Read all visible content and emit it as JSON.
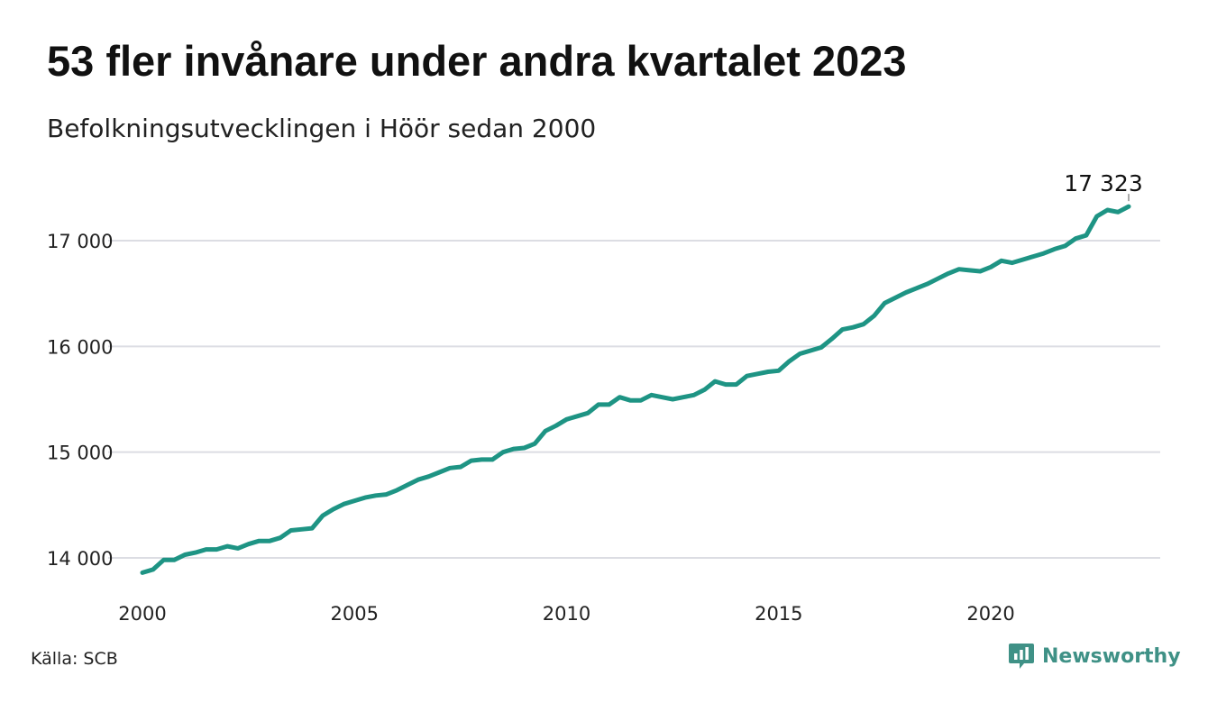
{
  "title": "53 fler invånare under andra kvartalet 2023",
  "subtitle": "Befolkningsutvecklingen i Höör sedan 2000",
  "source": "Källa: SCB",
  "brand": {
    "name": "Newsworthy",
    "icon": "bar-chart-speech-bubble-icon",
    "color": "#3f9186"
  },
  "colors": {
    "line": "#1e9484",
    "grid": "#dcdde3",
    "text": "#111111"
  },
  "chart_data": {
    "type": "line",
    "title": "53 fler invånare under andra kvartalet 2023",
    "subtitle": "Befolkningsutvecklingen i Höör sedan 2000",
    "xlabel": "",
    "ylabel": "",
    "xlim": [
      2000.0,
      2023.25
    ],
    "ylim": [
      13850,
      17420
    ],
    "y_ticks": [
      14000,
      15000,
      16000,
      17000
    ],
    "y_tick_labels": [
      "14 000",
      "15 000",
      "16 000",
      "17 000"
    ],
    "x_ticks": [
      2000,
      2005,
      2010,
      2015,
      2020
    ],
    "x_tick_labels": [
      "2000",
      "2005",
      "2010",
      "2015",
      "2020"
    ],
    "grid": "horizontal",
    "series": [
      {
        "values_note": "quarterly population, first point Q1 2000",
        "x_start": 2000.0,
        "x_step": 0.25,
        "values": [
          13860,
          13890,
          13980,
          13980,
          14030,
          14050,
          14080,
          14080,
          14110,
          14090,
          14130,
          14160,
          14160,
          14190,
          14260,
          14270,
          14280,
          14400,
          14460,
          14510,
          14540,
          14570,
          14590,
          14600,
          14640,
          14690,
          14740,
          14770,
          14810,
          14850,
          14860,
          14920,
          14930,
          14930,
          15000,
          15030,
          15040,
          15080,
          15200,
          15250,
          15310,
          15340,
          15370,
          15450,
          15450,
          15520,
          15490,
          15490,
          15540,
          15520,
          15500,
          15520,
          15540,
          15590,
          15670,
          15640,
          15640,
          15720,
          15740,
          15760,
          15770,
          15860,
          15930,
          15960,
          15990,
          16070,
          16160,
          16180,
          16210,
          16290,
          16410,
          16460,
          16510,
          16550,
          16590,
          16640,
          16690,
          16730,
          16720,
          16710,
          16750,
          16810,
          16790,
          16820,
          16850,
          16880,
          16920,
          16950,
          17020,
          17050,
          17230,
          17290,
          17270,
          17323
        ]
      }
    ],
    "annotations": [
      {
        "text": "17 323",
        "target": "last-point"
      }
    ]
  }
}
